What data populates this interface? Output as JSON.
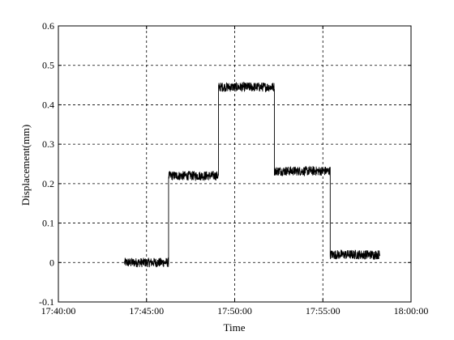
{
  "chart_data": {
    "type": "line",
    "xlabel": "Time",
    "ylabel": "Displacement(mm)",
    "xlim": [
      "17:40:00",
      "18:00:00"
    ],
    "ylim": [
      -0.1,
      0.6
    ],
    "grid": true,
    "x_ticks": [
      "17:40:00",
      "17:45:00",
      "17:50:00",
      "17:55:00",
      "18:00:00"
    ],
    "y_ticks": [
      -0.1,
      0,
      0.1,
      0.2,
      0.3,
      0.4,
      0.5,
      0.6
    ],
    "y_tick_labels": [
      "-0.1",
      "0",
      "0.1",
      "0.2",
      "0.3",
      "0.4",
      "0.5",
      "0.6"
    ],
    "noise_amplitude_mm": 0.012,
    "series": [
      {
        "color": "#000000",
        "segments": [
          {
            "start": "17:43:45",
            "end": "17:46:15",
            "value": 0.0
          },
          {
            "start": "17:46:15",
            "end": "17:49:05",
            "value": 0.22
          },
          {
            "start": "17:49:05",
            "end": "17:52:15",
            "value": 0.445
          },
          {
            "start": "17:52:15",
            "end": "17:55:25",
            "value": 0.232
          },
          {
            "start": "17:55:25",
            "end": "17:58:15",
            "value": 0.02
          }
        ]
      }
    ]
  }
}
